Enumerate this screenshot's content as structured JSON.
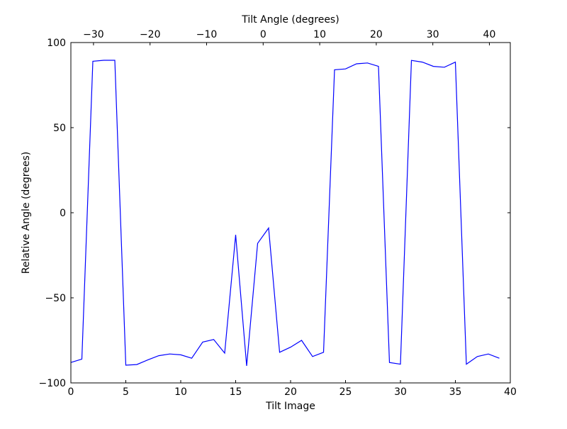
{
  "chart_data": {
    "type": "line",
    "xlabel": "Tilt Image",
    "ylabel": "Relative Angle (degrees)",
    "top_xlabel": "Tilt Angle (degrees)",
    "xlim": [
      0,
      40
    ],
    "ylim": [
      -100,
      100
    ],
    "top_xlim": [
      -34,
      43.7
    ],
    "xticks": [
      0,
      5,
      10,
      15,
      20,
      25,
      30,
      35,
      40
    ],
    "yticks": [
      -100,
      -50,
      0,
      50,
      100
    ],
    "top_xticks": [
      -30,
      -20,
      -10,
      0,
      10,
      20,
      30,
      40
    ],
    "xtick_labels": [
      "0",
      "5",
      "10",
      "15",
      "20",
      "25",
      "30",
      "35",
      "40"
    ],
    "ytick_labels": [
      "−100",
      "−50",
      "0",
      "50",
      "100"
    ],
    "top_xtick_labels": [
      "−30",
      "−20",
      "−10",
      "0",
      "10",
      "20",
      "30",
      "40"
    ],
    "grid": false,
    "line_color": "#0000ff",
    "series": [
      {
        "x": [
          0,
          1,
          2,
          3,
          4,
          5,
          6,
          7,
          8,
          9,
          10,
          11,
          12,
          13,
          14,
          15,
          16,
          17,
          18,
          19,
          20,
          21,
          22,
          23,
          24,
          25,
          26,
          27,
          28,
          29,
          30,
          31,
          32,
          33,
          34,
          35,
          36,
          37,
          38,
          39
        ],
        "values": [
          -88,
          -86,
          89,
          89.6,
          89.6,
          -89.6,
          -89.2,
          -86.5,
          -84,
          -83,
          -83.5,
          -85.5,
          -76,
          -74.5,
          -82.5,
          -13,
          -90,
          -18,
          -9,
          -82,
          -79,
          -75,
          -84.5,
          -82,
          84,
          84.5,
          87.5,
          88,
          86,
          -88,
          -89,
          89.5,
          88.5,
          86,
          85.5,
          88.5,
          -89,
          -84.5,
          -83,
          -85.5
        ]
      }
    ]
  }
}
